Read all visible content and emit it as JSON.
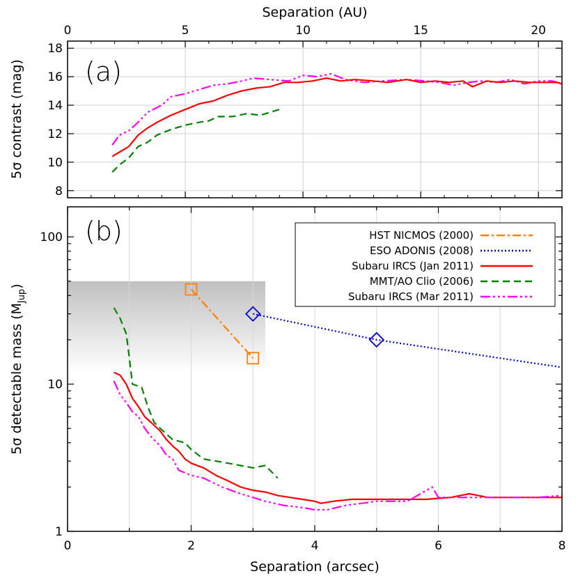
{
  "chart_data": [
    {
      "panel_label": "(a)",
      "type": "line",
      "xlabel": "Separation (AU)",
      "ylabel": "5σ contrast (mag)",
      "xlim": [
        0,
        21
      ],
      "ylim": [
        7.5,
        18.5
      ],
      "x_ticks": [
        0,
        5,
        10,
        15,
        20
      ],
      "y_ticks": [
        8,
        10,
        12,
        14,
        16,
        18
      ],
      "grid": true,
      "series": [
        {
          "key": "subaru_mar",
          "color": "#ff00ff",
          "dash": "14,4,3,4,3,4,3,4",
          "x": [
            1.9,
            2.2,
            2.6,
            3.0,
            3.4,
            4.0,
            4.4,
            5.0,
            5.6,
            6.2,
            6.8,
            7.4,
            7.9,
            8.6,
            9.4,
            10.0,
            10.6,
            11.2,
            11.8,
            12.6,
            13.4,
            14.4,
            15.2,
            15.8,
            16.4,
            17.0,
            17.6,
            18.2,
            18.8,
            19.4,
            20.0,
            20.6,
            21.0
          ],
          "y": [
            11.2,
            11.9,
            12.2,
            12.8,
            13.5,
            14.0,
            14.6,
            14.8,
            15.1,
            15.4,
            15.5,
            15.7,
            15.9,
            15.8,
            15.7,
            16.1,
            16.0,
            16.2,
            15.8,
            15.6,
            15.7,
            15.8,
            15.7,
            15.6,
            15.4,
            15.6,
            15.7,
            15.6,
            15.8,
            15.5,
            15.7,
            15.7,
            15.5
          ]
        },
        {
          "key": "subaru_jan",
          "color": "#ff0000",
          "dash": "",
          "x": [
            1.9,
            2.2,
            2.6,
            3.0,
            3.4,
            3.8,
            4.4,
            5.0,
            5.6,
            6.2,
            6.8,
            7.4,
            8.0,
            8.6,
            9.2,
            9.8,
            10.4,
            11.0,
            11.6,
            12.2,
            13.0,
            13.6,
            14.4,
            15.0,
            15.6,
            16.2,
            16.8,
            17.2,
            17.8,
            18.4,
            19.0,
            19.6,
            20.2,
            20.8,
            21.0
          ],
          "y": [
            10.4,
            10.7,
            11.1,
            11.9,
            12.4,
            12.8,
            13.3,
            13.7,
            14.1,
            14.3,
            14.7,
            15.0,
            15.2,
            15.3,
            15.6,
            15.6,
            15.7,
            15.9,
            15.7,
            15.8,
            15.7,
            15.6,
            15.8,
            15.6,
            15.7,
            15.6,
            15.7,
            15.3,
            15.7,
            15.6,
            15.7,
            15.6,
            15.6,
            15.6,
            15.5
          ]
        },
        {
          "key": "mmt",
          "color": "#008000",
          "dash": "10,6",
          "x": [
            1.9,
            2.2,
            2.6,
            3.0,
            3.4,
            3.8,
            4.4,
            5.0,
            5.6,
            6.0,
            6.4,
            7.0,
            7.6,
            8.2,
            8.8,
            9.0
          ],
          "y": [
            9.3,
            9.8,
            10.3,
            11.1,
            11.4,
            11.9,
            12.3,
            12.6,
            12.8,
            12.9,
            13.2,
            13.2,
            13.4,
            13.3,
            13.6,
            13.7
          ]
        }
      ]
    },
    {
      "panel_label": "(b)",
      "type": "line",
      "xlabel": "Separation (arcsec)",
      "ylabel": "5σ detectable mass (M",
      "ylabel_sub": "Jup",
      "ylabel_end": ")",
      "xlim": [
        0,
        8
      ],
      "ylim": [
        1,
        160
      ],
      "y_scale": "log",
      "x_ticks": [
        0,
        2,
        4,
        6,
        8
      ],
      "y_ticks": [
        1,
        10,
        100
      ],
      "grid": true,
      "legend_position": "top-right",
      "shaded_region": {
        "x": [
          0,
          3.2
        ],
        "y": [
          12,
          50
        ]
      },
      "series": [
        {
          "key": "hst",
          "name": "HST NICMOS (2000)",
          "color": "#ff8000",
          "dash": "12,4,3,4",
          "marker": "square",
          "x": [
            2,
            3
          ],
          "y": [
            44,
            15
          ]
        },
        {
          "key": "eso",
          "name": "ESO ADONIS (2008)",
          "color": "#0000cc",
          "dash": "2,3",
          "marker": "diamond",
          "marker_x": [
            3,
            5
          ],
          "x": [
            3,
            5,
            8
          ],
          "y": [
            30,
            20,
            13
          ]
        },
        {
          "key": "subaru_jan",
          "name": "Subaru IRCS (Jan 2011)",
          "color": "#ff0000",
          "dash": "",
          "x": [
            0.75,
            0.85,
            0.95,
            1.05,
            1.15,
            1.25,
            1.35,
            1.5,
            1.6,
            1.7,
            1.8,
            1.9,
            2.0,
            2.2,
            2.4,
            2.6,
            2.8,
            3.0,
            3.2,
            3.4,
            3.6,
            3.8,
            4.0,
            4.1,
            4.3,
            4.6,
            5.0,
            5.4,
            5.8,
            6.2,
            6.5,
            6.8,
            7.2,
            7.6,
            8.0
          ],
          "y": [
            12,
            11.5,
            10,
            8,
            7,
            6,
            5.5,
            4.8,
            4.2,
            3.8,
            3.5,
            3.1,
            2.9,
            2.7,
            2.4,
            2.2,
            2.0,
            1.9,
            1.85,
            1.75,
            1.7,
            1.65,
            1.6,
            1.55,
            1.6,
            1.65,
            1.65,
            1.65,
            1.65,
            1.7,
            1.8,
            1.7,
            1.7,
            1.7,
            1.7
          ]
        },
        {
          "key": "mmt",
          "name": "MMT/AO Clio (2006)",
          "color": "#008000",
          "dash": "10,6",
          "x": [
            0.75,
            0.85,
            0.95,
            1.0,
            1.05,
            1.2,
            1.3,
            1.4,
            1.5,
            1.7,
            1.9,
            2.0,
            2.2,
            2.4,
            2.6,
            2.8,
            3.0,
            3.2,
            3.4
          ],
          "y": [
            33,
            28,
            22,
            15,
            10,
            9.5,
            7,
            5.5,
            5,
            4.2,
            4,
            3.6,
            3.1,
            3.0,
            2.9,
            2.8,
            2.7,
            2.8,
            2.3
          ]
        },
        {
          "key": "subaru_mar",
          "name": "Subaru IRCS (Mar 2011)",
          "color": "#ff00ff",
          "dash": "14,4,3,4,3,4,3,4",
          "x": [
            0.75,
            0.85,
            0.95,
            1.05,
            1.15,
            1.25,
            1.35,
            1.5,
            1.6,
            1.7,
            1.8,
            2.0,
            2.2,
            2.5,
            2.8,
            3.0,
            3.2,
            3.5,
            3.8,
            4.0,
            4.2,
            4.5,
            5.0,
            5.5,
            5.9,
            6.0,
            6.3,
            6.8,
            7.2,
            7.6,
            8.0
          ],
          "y": [
            10.5,
            8.5,
            7.5,
            6.5,
            6,
            5,
            4.4,
            3.8,
            3.3,
            3.1,
            2.6,
            2.4,
            2.3,
            2.0,
            1.8,
            1.7,
            1.6,
            1.5,
            1.45,
            1.4,
            1.4,
            1.5,
            1.6,
            1.6,
            2.0,
            1.7,
            1.7,
            1.7,
            1.7,
            1.7,
            1.75
          ]
        }
      ]
    }
  ]
}
